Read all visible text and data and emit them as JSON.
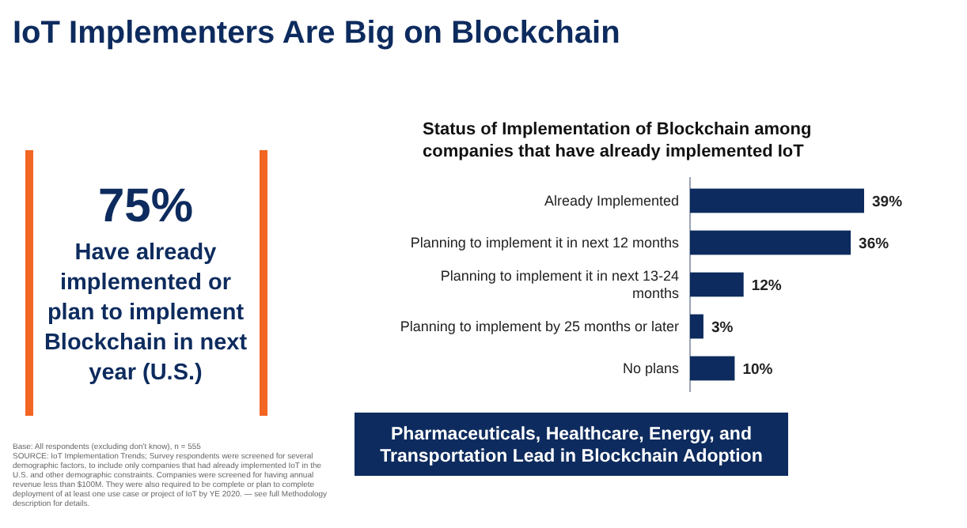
{
  "chart_data": {
    "type": "bar",
    "orientation": "horizontal",
    "title": "IoT Implementers Are Big on Blockchain",
    "subtitle": "Status of Implementation of Blockchain among companies that have already implemented IoT",
    "categories": [
      "Already Implemented",
      "Planning to implement it in next 12 months",
      "Planning to implement it in next 13-24 months",
      "Planning to implement by 25 months or later",
      "No plans"
    ],
    "values": [
      39,
      36,
      12,
      3,
      10
    ],
    "color": "#0d2b5e",
    "value_labels": [
      "39%",
      "36%",
      "12%",
      "3%",
      "10%"
    ],
    "annotations": [
      "75%",
      "Have already implemented or plan to implement Blockchain in next year (U.S.)",
      "Pharmaceuticals, Healthcare, Energy, and Transportation Lead in Blockchain Adoption",
      "Base: All respondents (excluding don't know), n = 555",
      "SOURCE: IoT Implementation Trends; Survey respondents were screened for several demographic factors, to include only companies that had already implemented IoT in the U.S. and other demographic constraints. Companies were screened for having annual revenue less than $100M. They were also required to be complete or plan to complete deployment of at least one use case or project of IoT by YE 2020. — see full Methodology description for details."
    ]
  }
}
